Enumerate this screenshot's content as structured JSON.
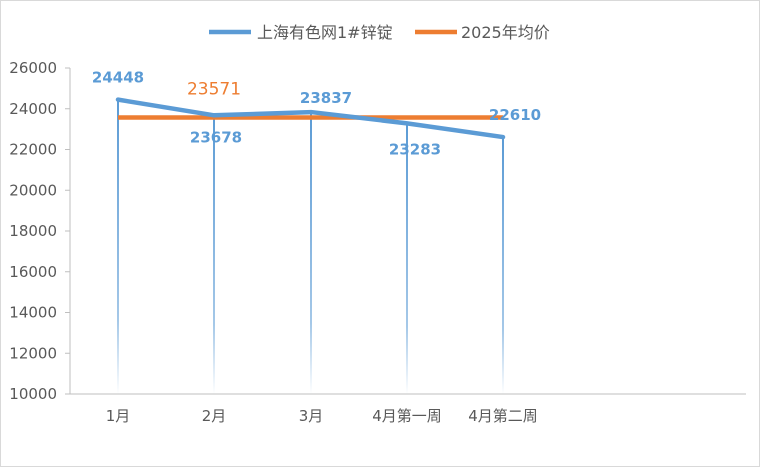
{
  "chart_data": {
    "type": "line",
    "categories": [
      "1月",
      "2月",
      "3月",
      "4月第一周",
      "4月第二周"
    ],
    "series": [
      {
        "name": "上海有色网1#锌锭",
        "values": [
          24448,
          23678,
          23837,
          23283,
          22610
        ],
        "color": "#5b9bd5",
        "data_labels": [
          "24448",
          "23678",
          "23837",
          "23283",
          "22610"
        ]
      },
      {
        "name": "2025年均价",
        "values": [
          23571,
          23571,
          23571,
          23571,
          23571
        ],
        "color": "#ed7d31",
        "data_label": "23571"
      }
    ],
    "ylim": [
      10000,
      26000
    ],
    "y_ticks": [
      10000,
      12000,
      14000,
      16000,
      18000,
      20000,
      22000,
      24000,
      26000
    ],
    "y_tick_labels": [
      "10000",
      "12000",
      "14000",
      "16000",
      "18000",
      "20000",
      "22000",
      "24000",
      "26000"
    ],
    "drop_lines": true,
    "gridlines": false,
    "legend_position": "top",
    "title": "",
    "xlabel": "",
    "ylabel": ""
  }
}
